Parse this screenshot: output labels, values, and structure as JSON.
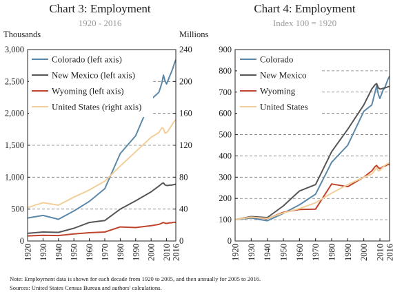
{
  "chart_data": [
    {
      "type": "line",
      "title": "Chart 3: Employment",
      "subtitle": "1920 - 2016",
      "left_unit": "Thousands",
      "right_unit": "Millions",
      "x_ticks": [
        "1920",
        "1930",
        "1940",
        "1950",
        "1960",
        "1970",
        "1980",
        "1990",
        "2000",
        "2010",
        "2016"
      ],
      "xlim": [
        1920,
        2016
      ],
      "ylim_left": [
        0,
        3000
      ],
      "ylim_right": [
        0,
        240
      ],
      "y_ticks_left": [
        "0",
        "500",
        "1,000",
        "1,500",
        "2,000",
        "2,500",
        "3,000"
      ],
      "y_ticks_right": [
        "0",
        "40",
        "80",
        "120",
        "160",
        "200",
        "240"
      ],
      "grid": "horizontal dashed",
      "legend_position": "top-left",
      "series": [
        {
          "name": "Colorado (left axis)",
          "axis": "left",
          "color": "#5b88a8",
          "x": [
            1920,
            1930,
            1940,
            1950,
            1960,
            1970,
            1980,
            1990,
            2000,
            2005,
            2006,
            2007,
            2008,
            2009,
            2010,
            2011,
            2012,
            2013,
            2014,
            2015,
            2016
          ],
          "values": [
            360,
            400,
            340,
            470,
            620,
            820,
            1370,
            1650,
            2220,
            2330,
            2400,
            2480,
            2600,
            2510,
            2460,
            2520,
            2580,
            2640,
            2700,
            2780,
            2840
          ]
        },
        {
          "name": "New Mexico (left axis)",
          "axis": "left",
          "color": "#555555",
          "x": [
            1920,
            1930,
            1940,
            1950,
            1960,
            1970,
            1980,
            1990,
            2000,
            2005,
            2006,
            2007,
            2008,
            2009,
            2010,
            2011,
            2012,
            2013,
            2014,
            2015,
            2016
          ],
          "values": [
            120,
            140,
            135,
            200,
            290,
            320,
            500,
            630,
            770,
            860,
            880,
            900,
            910,
            880,
            870,
            870,
            875,
            875,
            880,
            885,
            890
          ]
        },
        {
          "name": "Wyoming (left axis)",
          "axis": "left",
          "color": "#c0432b",
          "x": [
            1920,
            1930,
            1940,
            1950,
            1960,
            1970,
            1980,
            1990,
            2000,
            2005,
            2006,
            2007,
            2008,
            2009,
            2010,
            2011,
            2012,
            2013,
            2014,
            2015,
            2016
          ],
          "values": [
            80,
            90,
            85,
            110,
            130,
            140,
            220,
            210,
            240,
            260,
            270,
            280,
            290,
            280,
            275,
            280,
            285,
            285,
            290,
            295,
            290
          ]
        },
        {
          "name": "United States (right axis)",
          "axis": "right",
          "color": "#f2cf9a",
          "x": [
            1920,
            1930,
            1940,
            1950,
            1960,
            1970,
            1980,
            1990,
            2000,
            2005,
            2006,
            2007,
            2008,
            2009,
            2010,
            2011,
            2012,
            2013,
            2014,
            2015,
            2016
          ],
          "values": [
            42,
            48,
            45,
            55,
            64,
            75,
            94,
            112,
            130,
            136,
            139,
            142,
            141,
            135,
            136,
            138,
            141,
            144,
            147,
            150,
            152
          ]
        }
      ]
    },
    {
      "type": "line",
      "title": "Chart 4: Employment",
      "subtitle": "Index 100 = 1920",
      "x_ticks": [
        "1920",
        "1930",
        "1940",
        "1950",
        "1960",
        "1970",
        "1980",
        "1990",
        "2000",
        "2010",
        "2016"
      ],
      "xlim": [
        1920,
        2016
      ],
      "ylim": [
        0,
        900
      ],
      "y_ticks": [
        "0",
        "100",
        "200",
        "300",
        "400",
        "500",
        "600",
        "700",
        "800",
        "900"
      ],
      "grid": "horizontal dashed",
      "legend_position": "top-left",
      "series": [
        {
          "name": "Colorado",
          "color": "#5b88a8",
          "x": [
            1920,
            1930,
            1940,
            1950,
            1960,
            1970,
            1980,
            1990,
            2000,
            2005,
            2006,
            2007,
            2008,
            2009,
            2010,
            2011,
            2012,
            2013,
            2014,
            2015,
            2016
          ],
          "values": [
            100,
            108,
            95,
            130,
            170,
            220,
            370,
            450,
            610,
            640,
            670,
            700,
            730,
            690,
            670,
            690,
            710,
            720,
            740,
            760,
            775
          ]
        },
        {
          "name": "New Mexico",
          "color": "#555555",
          "x": [
            1920,
            1930,
            1940,
            1950,
            1960,
            1970,
            1980,
            1990,
            2000,
            2005,
            2006,
            2007,
            2008,
            2009,
            2010,
            2011,
            2012,
            2013,
            2014,
            2015,
            2016
          ],
          "values": [
            100,
            115,
            110,
            165,
            235,
            265,
            420,
            525,
            640,
            715,
            725,
            735,
            740,
            720,
            715,
            715,
            718,
            720,
            722,
            725,
            727
          ]
        },
        {
          "name": "Wyoming",
          "color": "#c0432b",
          "x": [
            1920,
            1930,
            1940,
            1950,
            1960,
            1970,
            1980,
            1990,
            2000,
            2005,
            2006,
            2007,
            2008,
            2009,
            2010,
            2011,
            2012,
            2013,
            2014,
            2015,
            2016
          ],
          "values": [
            100,
            112,
            105,
            135,
            148,
            150,
            268,
            255,
            300,
            330,
            340,
            350,
            355,
            345,
            340,
            345,
            350,
            352,
            355,
            360,
            358
          ]
        },
        {
          "name": "United States",
          "color": "#f2cf9a",
          "x": [
            1920,
            1930,
            1940,
            1950,
            1960,
            1970,
            1980,
            1990,
            2000,
            2005,
            2006,
            2007,
            2008,
            2009,
            2010,
            2011,
            2012,
            2013,
            2014,
            2015,
            2016
          ],
          "values": [
            100,
            112,
            106,
            132,
            152,
            180,
            225,
            265,
            300,
            315,
            325,
            335,
            345,
            330,
            332,
            340,
            348,
            355,
            360,
            365,
            368
          ]
        }
      ]
    }
  ],
  "footnotes": {
    "note": "Note: Employment data is shown for each decade from 1920 to 2005, and then annually for 2005 to 2016.",
    "sources": "Sources: United States Census Bureau and authors' calculations."
  }
}
